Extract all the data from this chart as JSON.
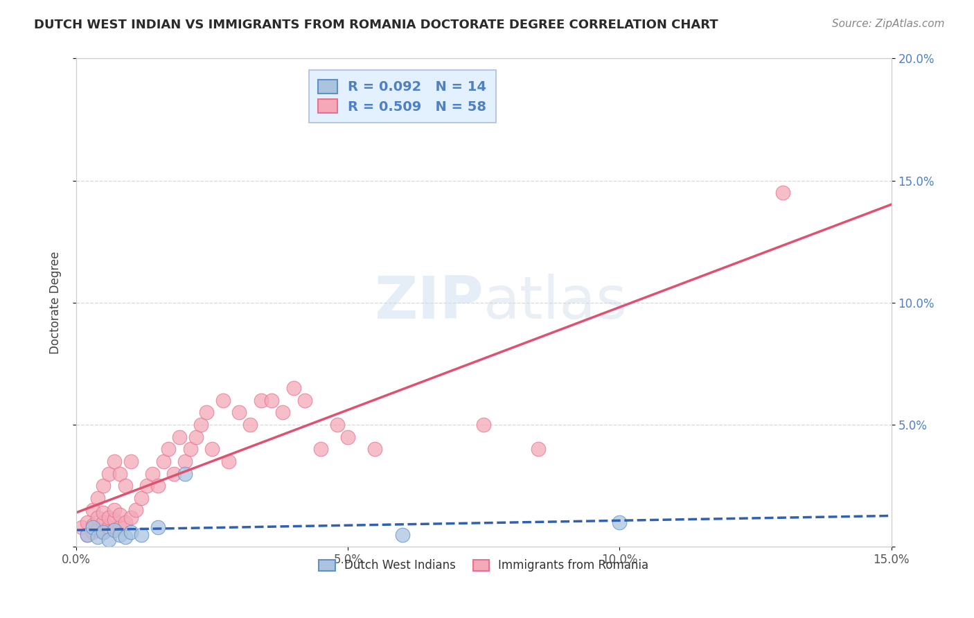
{
  "title": "DUTCH WEST INDIAN VS IMMIGRANTS FROM ROMANIA DOCTORATE DEGREE CORRELATION CHART",
  "source": "Source: ZipAtlas.com",
  "ylabel": "Doctorate Degree",
  "xlim": [
    0.0,
    0.15
  ],
  "ylim": [
    0.0,
    0.2
  ],
  "background_color": "#ffffff",
  "grid_color": "#d8d8d8",
  "series1_label": "Dutch West Indians",
  "series1_R": 0.092,
  "series1_N": 14,
  "series1_color": "#aac4e0",
  "series1_edge_color": "#6090c8",
  "series1_line_color": "#3060b0",
  "series1_line_style": "dashed",
  "series2_label": "Immigrants from Romania",
  "series2_R": 0.509,
  "series2_N": 58,
  "series2_color": "#f4a8b8",
  "series2_edge_color": "#e87090",
  "series2_line_color": "#e05070",
  "series2_line_style": "solid",
  "legend_box_color": "#ddeeff",
  "legend_border_color": "#aabbdd",
  "tick_color": "#5080c0",
  "dutch_x": [
    0.002,
    0.003,
    0.004,
    0.005,
    0.006,
    0.007,
    0.008,
    0.009,
    0.01,
    0.012,
    0.015,
    0.02,
    0.06,
    0.1
  ],
  "dutch_y": [
    0.005,
    0.008,
    0.004,
    0.006,
    0.003,
    0.007,
    0.005,
    0.004,
    0.006,
    0.005,
    0.008,
    0.03,
    0.005,
    0.01
  ],
  "romania_x": [
    0.001,
    0.002,
    0.002,
    0.003,
    0.003,
    0.003,
    0.004,
    0.004,
    0.004,
    0.005,
    0.005,
    0.005,
    0.005,
    0.006,
    0.006,
    0.006,
    0.007,
    0.007,
    0.007,
    0.007,
    0.008,
    0.008,
    0.008,
    0.009,
    0.009,
    0.01,
    0.01,
    0.011,
    0.012,
    0.013,
    0.014,
    0.015,
    0.016,
    0.017,
    0.018,
    0.019,
    0.02,
    0.021,
    0.022,
    0.023,
    0.024,
    0.025,
    0.027,
    0.028,
    0.03,
    0.032,
    0.034,
    0.036,
    0.038,
    0.04,
    0.042,
    0.045,
    0.048,
    0.05,
    0.055,
    0.075,
    0.085,
    0.13
  ],
  "romania_y": [
    0.008,
    0.005,
    0.01,
    0.006,
    0.009,
    0.015,
    0.007,
    0.012,
    0.02,
    0.006,
    0.01,
    0.014,
    0.025,
    0.008,
    0.012,
    0.03,
    0.007,
    0.011,
    0.015,
    0.035,
    0.008,
    0.013,
    0.03,
    0.01,
    0.025,
    0.012,
    0.035,
    0.015,
    0.02,
    0.025,
    0.03,
    0.025,
    0.035,
    0.04,
    0.03,
    0.045,
    0.035,
    0.04,
    0.045,
    0.05,
    0.055,
    0.04,
    0.06,
    0.035,
    0.055,
    0.05,
    0.06,
    0.06,
    0.055,
    0.065,
    0.06,
    0.04,
    0.05,
    0.045,
    0.04,
    0.05,
    0.04,
    0.145
  ]
}
